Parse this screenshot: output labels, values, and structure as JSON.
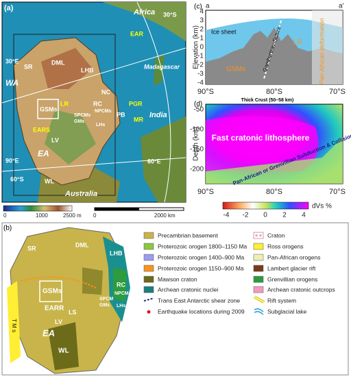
{
  "panels": {
    "a": {
      "label": "(a)",
      "map_labels": [
        "Africa",
        "EAR",
        "Madagascar",
        "India",
        "Australia",
        "SR",
        "DML",
        "LHB",
        "NC",
        "RC",
        "NPCMs",
        "SPCMs",
        "GMs",
        "LHs",
        "PGR",
        "PB",
        "MR",
        "LR",
        "GSMs",
        "EARS",
        "LV",
        "EA",
        "WA",
        "WL",
        "30°E",
        "60°E",
        "30°S",
        "90°E",
        "60°S"
      ],
      "colorbar_labels": [
        "0",
        "1000",
        "2500 m"
      ],
      "scale_labels": [
        "0",
        "2000 km"
      ]
    },
    "c": {
      "label": "(c)",
      "profile_start": "a",
      "profile_end": "a'",
      "y_axis_label": "Elevation (km)",
      "yticks": [
        "4",
        "3",
        "2",
        "1",
        "0",
        "-1",
        "-2",
        "-3",
        "-4"
      ],
      "xticks": [
        "90°S",
        "80°S",
        "70°S"
      ],
      "annotations": [
        "Ice sheet",
        "GSMs",
        "LR",
        "Gamburtsev Suture",
        "Pan-African deformation"
      ]
    },
    "d": {
      "label": "(d)",
      "top_note": "Thick Crust (50–58 km)",
      "y_axis_label": "Depth (km)",
      "yticks": [
        "-50",
        "-100",
        "-150",
        "-200"
      ],
      "xticks": [
        "90°S",
        "80°S",
        "70°S"
      ],
      "annotations": [
        "Fast cratonic lithosphere",
        "Pan-African or Grenvillian Subduction & Collision?"
      ],
      "colorbar_labels": [
        "-4",
        "-2",
        "0",
        "2",
        "4"
      ],
      "colorbar_unit": "dVs %"
    },
    "b": {
      "label": "(b)",
      "map_labels": [
        "SR",
        "DML",
        "LHB",
        "RC",
        "NPCM",
        "SPCM",
        "GMs",
        "LHs",
        "GSMs",
        "EARR",
        "LS",
        "LV",
        "EA",
        "WL",
        "T M s"
      ],
      "legend_left": [
        "Precambrian basement",
        "Proterozoic orogen 1800–1150 Ma",
        "Proterozoic orogen 1400–900 Ma",
        "Proterozoic orogen 1150–900 Ma",
        "Mawson craton",
        "Archean cratonic nuclei",
        "Trans East Antarctic shear zone",
        "Earthquake locations during 2009"
      ],
      "legend_right": [
        "Craton",
        "Ross orogens",
        "Pan-African orogens",
        "Lambert glacier rift",
        "Grenvillian orogens",
        "Archean cratonic outcrops",
        "Rift system",
        "Subglacial lake"
      ]
    }
  }
}
